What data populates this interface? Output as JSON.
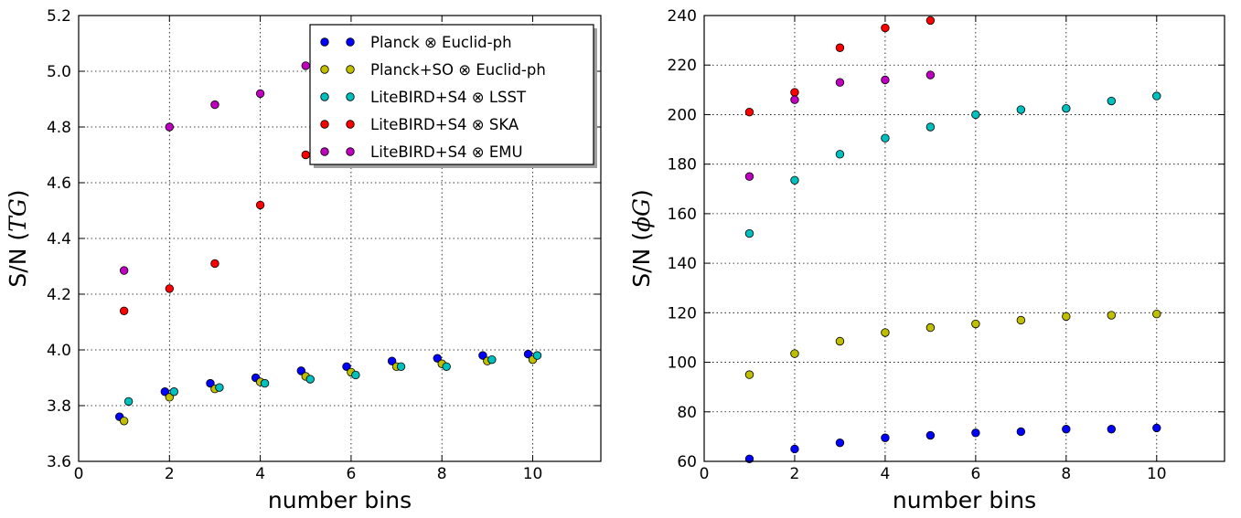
{
  "chart_data": [
    {
      "type": "scatter",
      "xlabel": "number bins",
      "ylabel": "S/N",
      "ylabel_math": "TG",
      "xlim": [
        0,
        11.5
      ],
      "ylim": [
        3.6,
        5.2
      ],
      "xticks": [
        0,
        2,
        4,
        6,
        8,
        10
      ],
      "yticks": [
        3.6,
        3.8,
        4.0,
        4.2,
        4.4,
        4.6,
        4.8,
        5.0,
        5.2
      ],
      "ytick_labels": [
        "3.6",
        "3.8",
        "4.0",
        "4.2",
        "4.4",
        "4.6",
        "4.8",
        "5.0",
        "5.2"
      ],
      "grid": true,
      "legend_position": "top-right",
      "series": [
        {
          "name": "Planck ⊗ Euclid-ph",
          "color": "#0000ff",
          "x": [
            0.9,
            1.9,
            2.9,
            3.9,
            4.9,
            5.9,
            6.9,
            7.9,
            8.9,
            9.9
          ],
          "y": [
            3.76,
            3.85,
            3.88,
            3.9,
            3.925,
            3.94,
            3.96,
            3.97,
            3.98,
            3.985
          ]
        },
        {
          "name": "Planck+SO ⊗ Euclid-ph",
          "color": "#bfbf00",
          "x": [
            1.0,
            2.0,
            3.0,
            4.0,
            5.0,
            6.0,
            7.0,
            8.0,
            9.0,
            10.0
          ],
          "y": [
            3.745,
            3.83,
            3.86,
            3.885,
            3.905,
            3.92,
            3.94,
            3.95,
            3.96,
            3.965
          ]
        },
        {
          "name": "LiteBIRD+S4 ⊗ LSST",
          "color": "#00bfbf",
          "x": [
            1.1,
            2.1,
            3.1,
            4.1,
            5.1,
            6.1,
            7.1,
            8.1,
            9.1,
            10.1
          ],
          "y": [
            3.815,
            3.85,
            3.865,
            3.88,
            3.895,
            3.91,
            3.94,
            3.94,
            3.965,
            3.98
          ]
        },
        {
          "name": "LiteBIRD+S4 ⊗ SKA",
          "color": "#ff0000",
          "x": [
            1,
            2,
            3,
            4,
            5
          ],
          "y": [
            4.14,
            4.22,
            4.31,
            4.52,
            4.7
          ]
        },
        {
          "name": "LiteBIRD+S4 ⊗ EMU",
          "color": "#bf00bf",
          "x": [
            1,
            2,
            3,
            4,
            5
          ],
          "y": [
            4.285,
            4.8,
            4.88,
            4.92,
            5.02
          ]
        }
      ]
    },
    {
      "type": "scatter",
      "xlabel": "number bins",
      "ylabel": "S/N",
      "ylabel_math": "ϕG",
      "xlim": [
        0,
        11.5
      ],
      "ylim": [
        60,
        240
      ],
      "xticks": [
        0,
        2,
        4,
        6,
        8,
        10
      ],
      "yticks": [
        60,
        80,
        100,
        120,
        140,
        160,
        180,
        200,
        220,
        240
      ],
      "ytick_labels": [
        "60",
        "80",
        "100",
        "120",
        "140",
        "160",
        "180",
        "200",
        "220",
        "240"
      ],
      "grid": true,
      "series": [
        {
          "color": "#0000ff",
          "x": [
            1,
            2,
            3,
            4,
            5,
            6,
            7,
            8,
            9,
            10
          ],
          "y": [
            61,
            65,
            67.5,
            69.5,
            70.5,
            71.5,
            72,
            73,
            73,
            73.5
          ]
        },
        {
          "color": "#bfbf00",
          "x": [
            1,
            2,
            3,
            4,
            5,
            6,
            7,
            8,
            9,
            10
          ],
          "y": [
            95,
            103.5,
            108.5,
            112,
            114,
            115.5,
            117,
            118.5,
            119,
            119.5
          ]
        },
        {
          "color": "#00bfbf",
          "x": [
            1,
            2,
            3,
            4,
            5,
            6,
            7,
            8,
            9,
            10
          ],
          "y": [
            152,
            173.5,
            184,
            190.5,
            195,
            200,
            202,
            202.5,
            205.5,
            207.5
          ]
        },
        {
          "color": "#ff0000",
          "x": [
            1,
            2,
            3,
            4,
            5
          ],
          "y": [
            201,
            209,
            227,
            235,
            238
          ]
        },
        {
          "color": "#bf00bf",
          "x": [
            1,
            2,
            3,
            4,
            5
          ],
          "y": [
            175,
            206,
            213,
            214,
            216
          ]
        }
      ]
    }
  ]
}
